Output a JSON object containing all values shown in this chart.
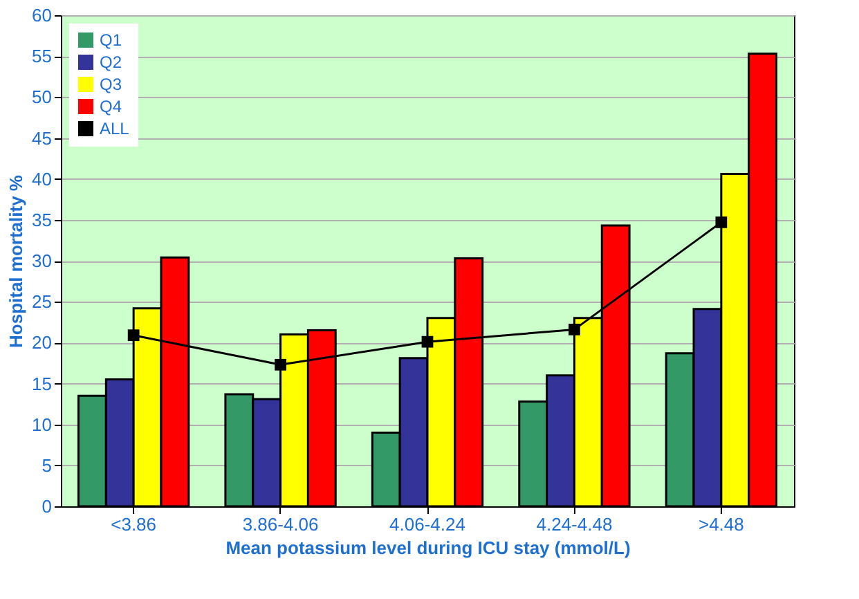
{
  "chart_data": {
    "type": "bar",
    "xlabel": "Mean potassium level during ICU stay (mmol/L)",
    "ylabel": "Hospital mortality %",
    "categories": [
      "<3.86",
      "3.86-4.06",
      "4.06-4.24",
      "4.24-4.48",
      ">4.48"
    ],
    "series": [
      {
        "name": "Q1",
        "color": "#339966",
        "values": [
          13.5,
          13.7,
          9.0,
          12.8,
          18.7
        ]
      },
      {
        "name": "Q2",
        "color": "#333399",
        "values": [
          15.5,
          13.1,
          18.1,
          16.0,
          24.1
        ]
      },
      {
        "name": "Q3",
        "color": "#ffff00",
        "values": [
          24.2,
          21.0,
          23.0,
          23.0,
          40.6
        ]
      },
      {
        "name": "Q4",
        "color": "#ff0000",
        "values": [
          30.4,
          21.5,
          30.3,
          34.3,
          55.3
        ]
      },
      {
        "name": "ALL",
        "type": "line",
        "color": "#000000",
        "marker": "square",
        "values": [
          20.9,
          17.3,
          20.1,
          21.6,
          34.7
        ]
      }
    ],
    "ylim": [
      0,
      60
    ],
    "yticks": [
      0,
      5,
      10,
      15,
      20,
      25,
      30,
      35,
      40,
      45,
      50,
      55,
      60
    ],
    "grid": "y",
    "legend": "top left"
  }
}
